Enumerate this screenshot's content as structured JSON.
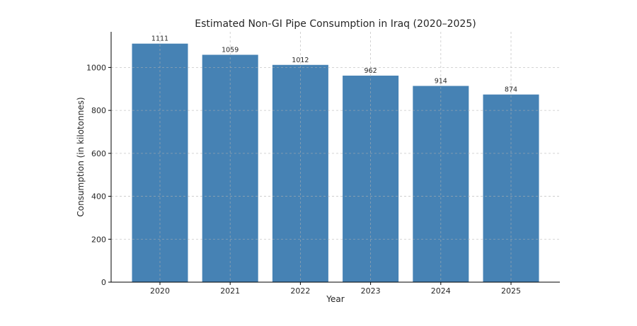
{
  "chart_data": {
    "type": "bar",
    "title": "Estimated Non-GI Pipe Consumption in Iraq (2020–2025)",
    "xlabel": "Year",
    "ylabel": "Consumption (in kilotonnes)",
    "categories": [
      "2020",
      "2021",
      "2022",
      "2023",
      "2024",
      "2025"
    ],
    "values": [
      1111,
      1059,
      1012,
      962,
      914,
      874
    ],
    "data_labels": [
      "1111",
      "1059",
      "1012",
      "962",
      "914",
      "874"
    ],
    "ylim": [
      0,
      1166
    ],
    "yticks": [
      0,
      200,
      400,
      600,
      800,
      1000
    ],
    "grid": true,
    "bar_color": "#4682b4"
  }
}
